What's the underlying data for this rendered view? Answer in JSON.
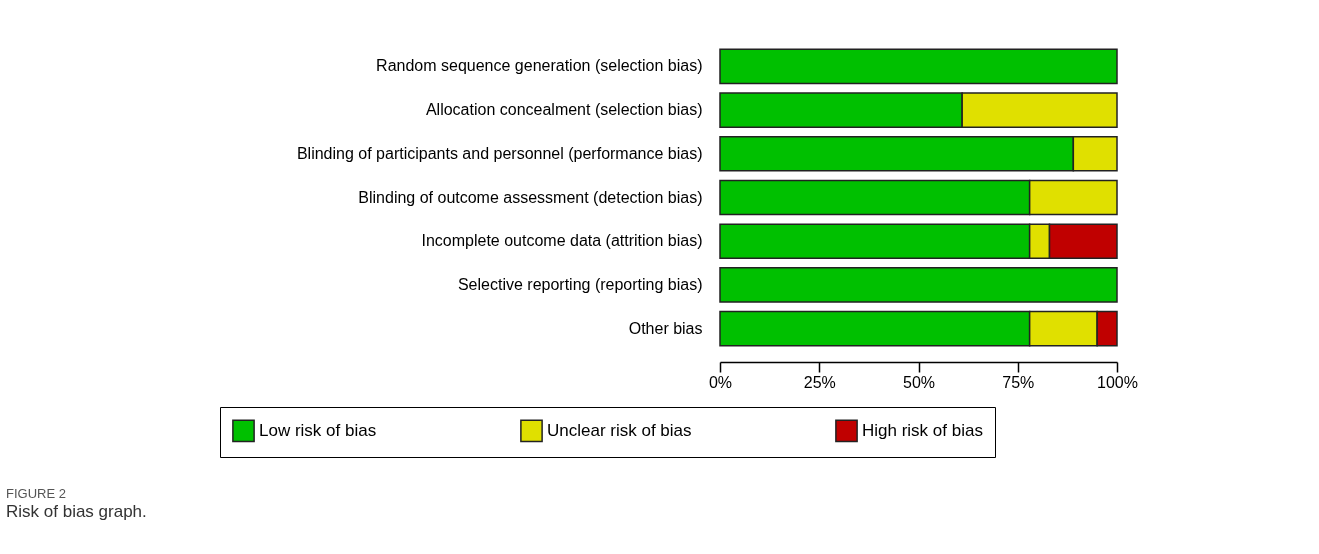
{
  "chart_data": {
    "type": "bar",
    "orientation": "horizontal",
    "stacked": true,
    "categories": [
      "Random sequence generation (selection bias)",
      "Allocation concealment (selection bias)",
      "Blinding of participants and personnel (performance bias)",
      "Blinding of outcome assessment (detection bias)",
      "Incomplete outcome data (attrition bias)",
      "Selective reporting (reporting bias)",
      "Other bias"
    ],
    "series": [
      {
        "name": "Low risk of bias",
        "color": "#00c000",
        "values": [
          100,
          61,
          89,
          78,
          78,
          100,
          78
        ]
      },
      {
        "name": "Unclear risk of bias",
        "color": "#e0e000",
        "values": [
          null,
          39,
          11,
          22,
          5,
          null,
          17
        ]
      },
      {
        "name": "High risk of bias",
        "color": "#c00000",
        "values": [
          null,
          null,
          null,
          null,
          17,
          null,
          5
        ]
      }
    ],
    "xlim": [
      0,
      100
    ],
    "xticks": [
      {
        "value": 0,
        "label": "0%"
      },
      {
        "value": 25,
        "label": "25%"
      },
      {
        "value": 50,
        "label": "50%"
      },
      {
        "value": 75,
        "label": "75%"
      },
      {
        "value": 100,
        "label": "100%"
      }
    ],
    "grid": false,
    "legend": "bottom",
    "annotations": [
      "FIGURE 2",
      "Risk of bias graph."
    ]
  }
}
